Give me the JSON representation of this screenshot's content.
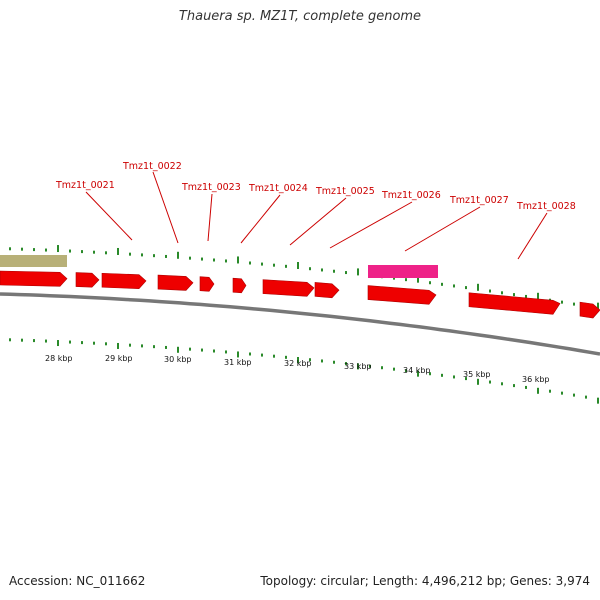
{
  "title": "Thauera sp. MZ1T, complete genome",
  "footer": {
    "accession": "Accession: NC_011662",
    "summary": "Topology: circular; Length: 4,496,212 bp; Genes: 3,974"
  },
  "colors": {
    "gene": "#ee0000",
    "highlight": "#ee2288",
    "feature_olive": "#b8b078",
    "tick": "#2a8a2a",
    "backbone": "#777777",
    "label": "#cc0000"
  },
  "gene_labels": [
    "Tmz1t_0021",
    "Tmz1t_0022",
    "Tmz1t_0023",
    "Tmz1t_0024",
    "Tmz1t_0025",
    "Tmz1t_0026",
    "Tmz1t_0027",
    "Tmz1t_0028"
  ],
  "kbp_labels": [
    "28 kbp",
    "29 kbp",
    "30 kbp",
    "31 kbp",
    "32 kbp",
    "33 kbp",
    "34 kbp",
    "35 kbp",
    "36 kbp"
  ]
}
